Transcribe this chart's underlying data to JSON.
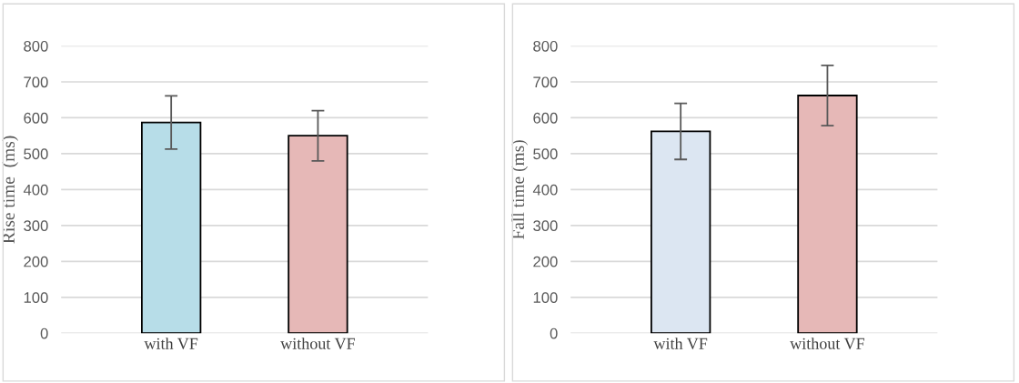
{
  "chart_data": [
    {
      "type": "bar",
      "ylabel": "Rise time  (ms)",
      "categories": [
        "with VF",
        "without VF"
      ],
      "values": [
        587,
        550
      ],
      "errors": [
        74,
        70
      ],
      "colors": [
        "#b7dde8",
        "#e6b8b7"
      ],
      "ylim": [
        0,
        800
      ],
      "yticks": [
        0,
        100,
        200,
        300,
        400,
        500,
        600,
        700,
        800
      ],
      "grid": "y"
    },
    {
      "type": "bar",
      "ylabel": "Fall time (ms)",
      "categories": [
        "with VF",
        "without VF"
      ],
      "values": [
        562,
        662
      ],
      "errors": [
        78,
        84
      ],
      "colors": [
        "#dce6f2",
        "#e6b8b7"
      ],
      "ylim": [
        0,
        800
      ],
      "yticks": [
        0,
        100,
        200,
        300,
        400,
        500,
        600,
        700,
        800
      ],
      "grid": "y"
    }
  ]
}
